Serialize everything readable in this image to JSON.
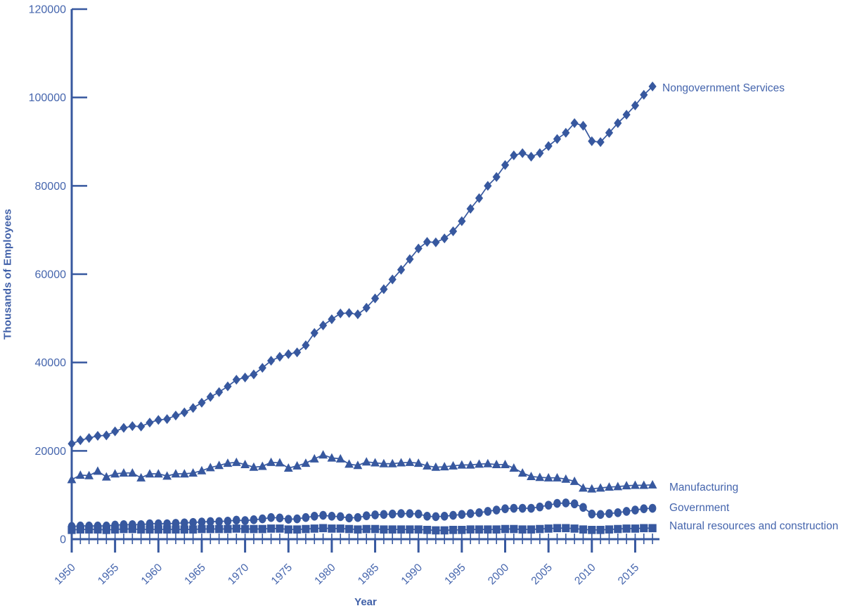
{
  "page": {
    "background": "#ffffff"
  },
  "chart": {
    "y_axis_title": "Thousands of Employees",
    "x_axis_title": "Year",
    "colors": {
      "line": "#37589f",
      "text": "#4565ad",
      "axis": "#37589f"
    }
  },
  "chart_data": {
    "type": "line",
    "title": "",
    "xlabel": "Year",
    "ylabel": "Thousands of Employees",
    "ylim": [
      0,
      120000
    ],
    "yticks": [
      0,
      20000,
      40000,
      60000,
      80000,
      100000,
      120000
    ],
    "xticks": [
      1950,
      1955,
      1960,
      1965,
      1970,
      1975,
      1980,
      1985,
      1990,
      1995,
      2000,
      2005,
      2010,
      2015
    ],
    "grid": false,
    "legend_position": "labels-at-line-ends",
    "x": [
      1950,
      1951,
      1952,
      1953,
      1954,
      1955,
      1956,
      1957,
      1958,
      1959,
      1960,
      1961,
      1962,
      1963,
      1964,
      1965,
      1966,
      1967,
      1968,
      1969,
      1970,
      1971,
      1972,
      1973,
      1974,
      1975,
      1976,
      1977,
      1978,
      1979,
      1980,
      1981,
      1982,
      1983,
      1984,
      1985,
      1986,
      1987,
      1988,
      1989,
      1990,
      1991,
      1992,
      1993,
      1994,
      1995,
      1996,
      1997,
      1998,
      1999,
      2000,
      2001,
      2002,
      2003,
      2004,
      2005,
      2006,
      2007,
      2008,
      2009,
      2010,
      2011,
      2012,
      2013,
      2014,
      2015,
      2016,
      2017
    ],
    "series": [
      {
        "name": "Nongovernment Services",
        "marker": "diamond",
        "values": [
          21600,
          22400,
          22900,
          23400,
          23500,
          24400,
          25200,
          25600,
          25500,
          26400,
          27000,
          27200,
          28000,
          28700,
          29700,
          30900,
          32200,
          33300,
          34600,
          36100,
          36600,
          37300,
          38800,
          40400,
          41300,
          41900,
          42300,
          43900,
          46700,
          48400,
          49800,
          51100,
          51200,
          50900,
          52400,
          54500,
          56600,
          58800,
          61000,
          63400,
          65800,
          67300,
          67200,
          68100,
          69700,
          72000,
          74800,
          77200,
          80000,
          82000,
          84700,
          86900,
          87400,
          86600,
          87400,
          89000,
          90600,
          92000,
          94200,
          93600,
          90100,
          89900,
          92000,
          94200,
          96100,
          98200,
          100600,
          102500
        ]
      },
      {
        "name": "Manufacturing",
        "marker": "triangle",
        "values": [
          13500,
          14500,
          14400,
          15400,
          14100,
          14800,
          15000,
          15000,
          13900,
          14800,
          14800,
          14300,
          14800,
          14800,
          15000,
          15500,
          16200,
          16700,
          17200,
          17400,
          16900,
          16300,
          16500,
          17400,
          17300,
          16100,
          16600,
          17200,
          18200,
          19100,
          18400,
          18200,
          17000,
          16700,
          17500,
          17300,
          17100,
          17100,
          17300,
          17400,
          17200,
          16600,
          16300,
          16400,
          16600,
          16800,
          16800,
          17000,
          17100,
          16900,
          16900,
          16100,
          15000,
          14200,
          14000,
          13900,
          13900,
          13600,
          13100,
          11600,
          11400,
          11600,
          11800,
          11900,
          12100,
          12200,
          12200,
          12300
        ]
      },
      {
        "name": "Government",
        "marker": "circle",
        "values": [
          2900,
          3000,
          3000,
          3000,
          3000,
          3200,
          3300,
          3300,
          3300,
          3500,
          3500,
          3500,
          3600,
          3700,
          3800,
          3900,
          4000,
          4000,
          4100,
          4300,
          4200,
          4400,
          4600,
          4900,
          4800,
          4500,
          4600,
          4900,
          5200,
          5400,
          5200,
          5100,
          4800,
          4900,
          5300,
          5500,
          5600,
          5700,
          5800,
          5800,
          5700,
          5200,
          5100,
          5200,
          5400,
          5600,
          5800,
          6000,
          6300,
          6600,
          6900,
          7000,
          7000,
          7000,
          7300,
          7700,
          8100,
          8200,
          8000,
          7200,
          5700,
          5600,
          5800,
          6000,
          6300,
          6600,
          6900,
          7000
        ]
      },
      {
        "name": "Natural resources and construction",
        "marker": "square",
        "values": [
          2100,
          2200,
          2200,
          2200,
          2100,
          2200,
          2300,
          2300,
          2200,
          2200,
          2200,
          2200,
          2200,
          2200,
          2200,
          2300,
          2300,
          2300,
          2300,
          2400,
          2300,
          2300,
          2300,
          2400,
          2400,
          2200,
          2200,
          2300,
          2400,
          2500,
          2400,
          2400,
          2300,
          2200,
          2300,
          2300,
          2200,
          2200,
          2200,
          2200,
          2200,
          2100,
          2000,
          2000,
          2100,
          2100,
          2200,
          2200,
          2200,
          2200,
          2300,
          2300,
          2200,
          2200,
          2300,
          2400,
          2500,
          2500,
          2400,
          2200,
          2100,
          2100,
          2200,
          2300,
          2400,
          2400,
          2500,
          2500
        ]
      }
    ]
  }
}
